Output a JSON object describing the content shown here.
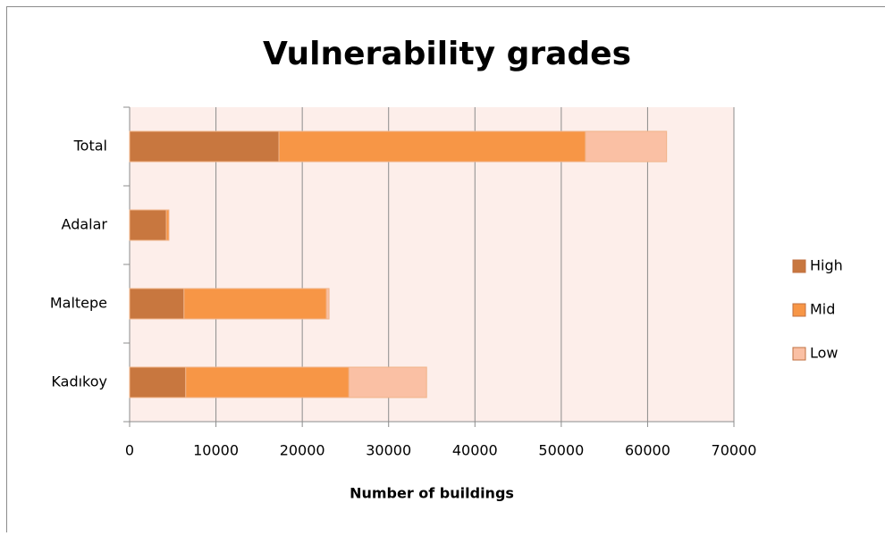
{
  "chart_data": {
    "type": "stacked_barh",
    "title": "Vulnerability grades",
    "x_label": "Number of buildings",
    "categories": [
      "Total",
      "Adalar",
      "Maltepe",
      "Kadıkoy"
    ],
    "series": [
      {
        "name": "High",
        "color": "#c8773f",
        "values": [
          17300,
          4250,
          6300,
          6500
        ]
      },
      {
        "name": "Mid",
        "color": "#f79646",
        "values": [
          35500,
          300,
          16500,
          18900
        ]
      },
      {
        "name": "Low",
        "color": "#fac0a4",
        "values": [
          9400,
          0,
          300,
          9000
        ]
      }
    ],
    "xlim": [
      0,
      70000
    ],
    "xticks": [
      0,
      10000,
      20000,
      30000,
      40000,
      50000,
      60000,
      70000
    ],
    "grid": true,
    "legend": "right",
    "plot_background": "#fdeeea"
  }
}
